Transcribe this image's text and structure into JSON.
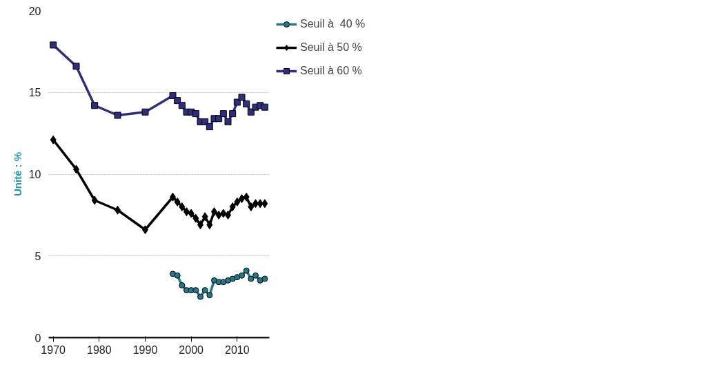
{
  "chart_data": {
    "type": "line",
    "ylabel": "Unité : %",
    "x": [
      1970,
      1975,
      1979,
      1984,
      1990,
      1996,
      1997,
      1998,
      1999,
      2000,
      2001,
      2002,
      2003,
      2004,
      2005,
      2006,
      2007,
      2008,
      2009,
      2010,
      2011,
      2012,
      2013,
      2014,
      2015,
      2016
    ],
    "series": [
      {
        "name": "Seuil à  40 %",
        "color": "#1f7a8c",
        "marker": "circle",
        "values": [
          null,
          null,
          null,
          null,
          null,
          3.9,
          3.8,
          3.2,
          2.9,
          2.9,
          2.9,
          2.5,
          2.9,
          2.6,
          3.5,
          3.4,
          3.4,
          3.5,
          3.6,
          3.7,
          3.8,
          4.1,
          3.6,
          3.8,
          3.5,
          3.6
        ]
      },
      {
        "name": "Seuil à 50 %",
        "color": "#000000",
        "marker": "diamond",
        "values": [
          12.1,
          10.3,
          8.4,
          7.8,
          6.6,
          8.6,
          8.3,
          8.0,
          7.7,
          7.6,
          7.3,
          6.9,
          7.4,
          6.9,
          7.7,
          7.5,
          7.6,
          7.5,
          8.0,
          8.3,
          8.5,
          8.6,
          8.0,
          8.2,
          8.2,
          8.2
        ]
      },
      {
        "name": "Seuil à 60 %",
        "color": "#2e2e80",
        "marker": "square",
        "values": [
          17.9,
          16.6,
          14.2,
          13.6,
          13.8,
          14.8,
          14.5,
          14.2,
          13.8,
          13.8,
          13.7,
          13.2,
          13.2,
          12.9,
          13.4,
          13.4,
          13.7,
          13.2,
          13.7,
          14.4,
          14.7,
          14.3,
          13.8,
          14.1,
          14.2,
          14.1
        ]
      }
    ],
    "xlim": [
      1969,
      2017
    ],
    "xticks": [
      1970,
      1980,
      1990,
      2000,
      2010
    ],
    "ylim": [
      0,
      20
    ],
    "yticks": [
      0,
      5,
      10,
      15,
      20
    ],
    "grid": "y",
    "legend": "top right",
    "line_style": "solid"
  }
}
